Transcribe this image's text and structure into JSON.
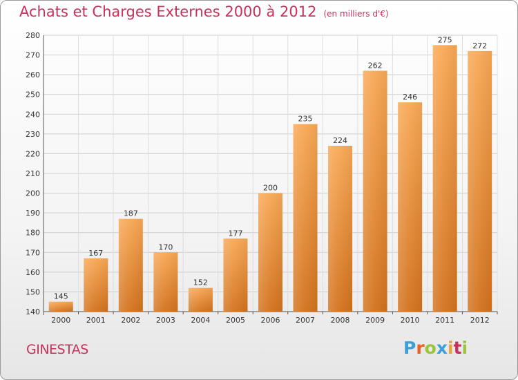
{
  "header": {
    "title": "Achats et Charges Externes 2000 à 2012",
    "unit": "(en milliers d'€)"
  },
  "footer": {
    "city": "GINESTAS",
    "logo_text": "Proxiti"
  },
  "colors": {
    "title": "#c8325a",
    "bar_light": "#f7a553",
    "bar_dark": "#d4731e",
    "grid": "#cccccc"
  },
  "chart_data": {
    "type": "bar",
    "title": "Achats et Charges Externes 2000 à 2012",
    "xlabel": "",
    "ylabel": "",
    "categories": [
      "2000",
      "2001",
      "2002",
      "2003",
      "2004",
      "2005",
      "2006",
      "2007",
      "2008",
      "2009",
      "2010",
      "2011",
      "2012"
    ],
    "values": [
      145,
      167,
      187,
      170,
      152,
      177,
      200,
      235,
      224,
      262,
      246,
      275,
      272
    ],
    "ylim": [
      140,
      280
    ],
    "yticks": [
      140,
      150,
      160,
      170,
      180,
      190,
      200,
      210,
      220,
      230,
      240,
      250,
      260,
      270,
      280
    ],
    "grid": true,
    "legend": "none"
  }
}
